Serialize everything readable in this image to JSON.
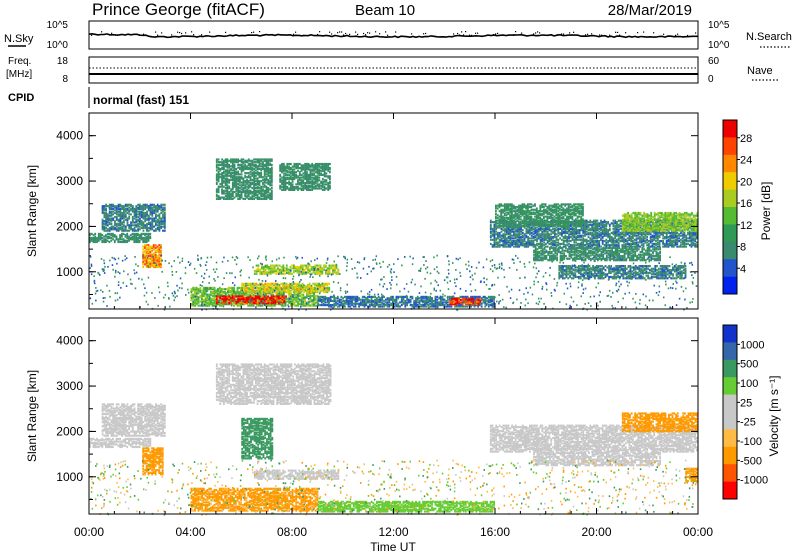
{
  "header": {
    "station": "Prince George (fitACF)",
    "beam": "Beam 10",
    "date": "28/Mar/2019"
  },
  "noise_panel": {
    "left_label": "N.Sky",
    "right_label": "N.Search",
    "left_ticks": [
      "10^5",
      "10^0"
    ],
    "right_ticks": [
      "10^5",
      "10^0"
    ]
  },
  "freq_panel": {
    "left_label_top": "Freq.",
    "left_label_unit": "[MHz]",
    "right_label": "Nave",
    "left_ticks": [
      "18",
      "8"
    ],
    "right_ticks": [
      "60",
      "0"
    ]
  },
  "cpid": {
    "label": "CPID",
    "value": "normal (fast) 151"
  },
  "x_axis": {
    "title": "Time UT",
    "ticks": [
      "00:00",
      "04:00",
      "08:00",
      "12:00",
      "16:00",
      "20:00",
      "00:00"
    ]
  },
  "chart_data": [
    {
      "type": "heatmap",
      "title": "Power",
      "xlabel": "Time UT",
      "ylabel": "Slant Range [km]",
      "xlim": [
        0,
        24
      ],
      "ylim": [
        180,
        4500
      ],
      "y_ticks": [
        "1000",
        "2000",
        "3000",
        "4000"
      ],
      "colorbar": {
        "label": "Power [dB]",
        "ticks": [
          "28",
          "24",
          "20",
          "16",
          "12",
          "8",
          "4"
        ],
        "range": [
          0,
          30
        ],
        "colors": [
          "#0022ee",
          "#2255cc",
          "#3a8a70",
          "#2f9a55",
          "#55bb33",
          "#aacc22",
          "#eecc00",
          "#ff8800",
          "#ff4400",
          "#ee0000"
        ]
      },
      "regions": [
        {
          "t0": 0.0,
          "t1": 2.4,
          "r0": 1650,
          "r1": 1850,
          "value": 8
        },
        {
          "t0": 0.5,
          "t1": 3.0,
          "r0": 1900,
          "r1": 2500,
          "value": 7
        },
        {
          "t0": 2.1,
          "t1": 2.8,
          "r0": 1100,
          "r1": 1600,
          "value": 22
        },
        {
          "t0": 4.0,
          "t1": 9.0,
          "r0": 250,
          "r1": 650,
          "value": 14
        },
        {
          "t0": 5.0,
          "t1": 7.8,
          "r0": 300,
          "r1": 480,
          "value": 29
        },
        {
          "t0": 6.0,
          "t1": 9.5,
          "r0": 550,
          "r1": 750,
          "value": 18
        },
        {
          "t0": 6.5,
          "t1": 9.8,
          "r0": 950,
          "r1": 1150,
          "value": 16
        },
        {
          "t0": 5.0,
          "t1": 7.2,
          "r0": 2600,
          "r1": 3500,
          "value": 8
        },
        {
          "t0": 7.5,
          "t1": 9.5,
          "r0": 2800,
          "r1": 3400,
          "value": 8
        },
        {
          "t0": 9.0,
          "t1": 16.0,
          "r0": 230,
          "r1": 450,
          "value": 6
        },
        {
          "t0": 14.2,
          "t1": 15.4,
          "r0": 280,
          "r1": 420,
          "value": 28
        },
        {
          "t0": 15.8,
          "t1": 24.0,
          "r0": 1550,
          "r1": 2150,
          "value": 7
        },
        {
          "t0": 17.5,
          "t1": 22.5,
          "r0": 1250,
          "r1": 1550,
          "value": 8
        },
        {
          "t0": 18.5,
          "t1": 23.5,
          "r0": 850,
          "r1": 1150,
          "value": 7
        },
        {
          "t0": 16.0,
          "t1": 19.5,
          "r0": 2000,
          "r1": 2500,
          "value": 9
        },
        {
          "t0": 21.0,
          "t1": 24.0,
          "r0": 1900,
          "r1": 2300,
          "value": 15
        }
      ]
    },
    {
      "type": "heatmap",
      "title": "Velocity",
      "xlabel": "Time UT",
      "ylabel": "Slant Range [km]",
      "xlim": [
        0,
        24
      ],
      "ylim": [
        180,
        4500
      ],
      "y_ticks": [
        "1000",
        "2000",
        "3000",
        "4000"
      ],
      "colorbar": {
        "label": "Velocity [m s⁻¹]",
        "ticks": [
          "1000",
          "500",
          "100",
          "25",
          "-25",
          "-100",
          "-500",
          "-1000"
        ],
        "colors": [
          "#ff0000",
          "#ff5500",
          "#ff9900",
          "#ffbb44",
          "#c8c8c8",
          "#c8c8c8",
          "#66cc33",
          "#3a9960",
          "#3366aa",
          "#1133cc"
        ]
      },
      "regions": [
        {
          "t0": 0.0,
          "t1": 2.4,
          "r0": 1650,
          "r1": 1850,
          "value": 0
        },
        {
          "t0": 0.5,
          "t1": 3.0,
          "r0": 1900,
          "r1": 2600,
          "value": 0
        },
        {
          "t0": 2.1,
          "t1": 2.9,
          "r0": 1050,
          "r1": 1650,
          "value": -150
        },
        {
          "t0": 4.0,
          "t1": 9.0,
          "r0": 250,
          "r1": 750,
          "value": -120
        },
        {
          "t0": 6.5,
          "t1": 9.8,
          "r0": 950,
          "r1": 1150,
          "value": 0
        },
        {
          "t0": 5.0,
          "t1": 9.5,
          "r0": 2600,
          "r1": 3500,
          "value": 0
        },
        {
          "t0": 6.0,
          "t1": 7.2,
          "r0": 1400,
          "r1": 2300,
          "value": 300
        },
        {
          "t0": 9.0,
          "t1": 16.0,
          "r0": 230,
          "r1": 450,
          "value": 80
        },
        {
          "t0": 15.8,
          "t1": 24.0,
          "r0": 1550,
          "r1": 2150,
          "value": 0
        },
        {
          "t0": 17.5,
          "t1": 22.5,
          "r0": 1250,
          "r1": 1550,
          "value": 0
        },
        {
          "t0": 21.0,
          "t1": 24.0,
          "r0": 2000,
          "r1": 2400,
          "value": -300
        },
        {
          "t0": 23.5,
          "t1": 24.0,
          "r0": 900,
          "r1": 1200,
          "value": -400
        }
      ]
    }
  ]
}
